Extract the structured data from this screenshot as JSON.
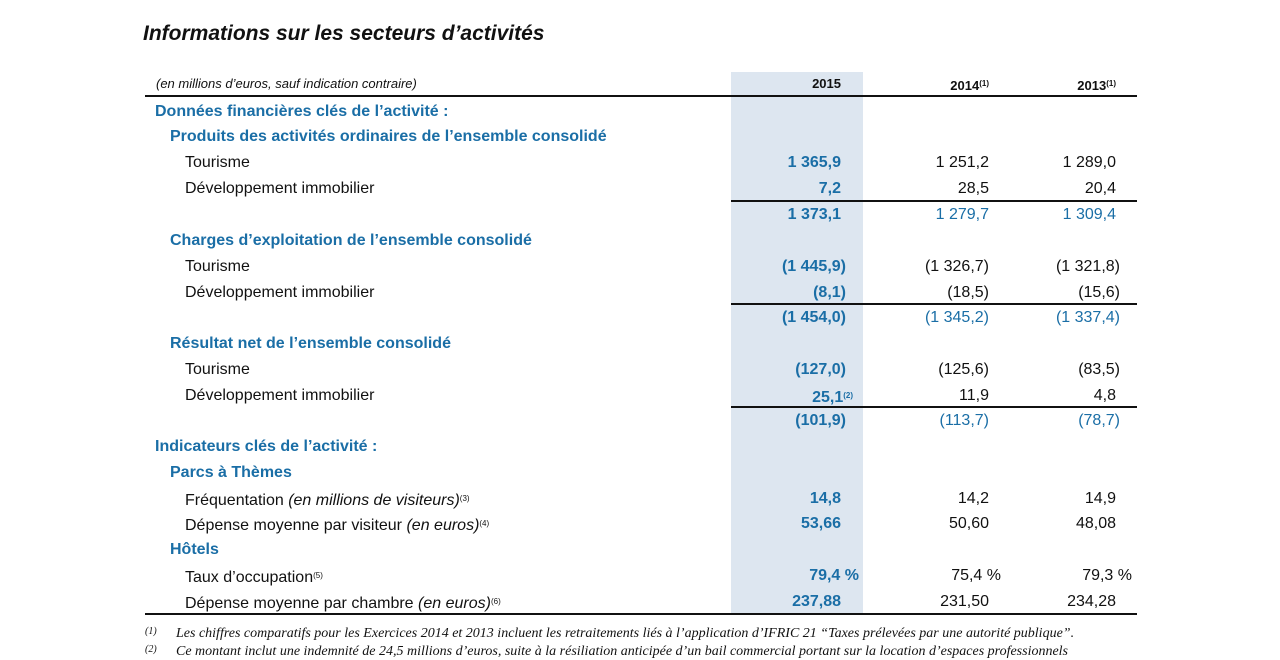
{
  "title": "Informations sur les secteurs d’activités",
  "header": {
    "unit_note": "(en millions d’euros, sauf indication contraire)",
    "y2015": "2015",
    "y2014": "2014",
    "y2013": "2013",
    "note_mark": "(1)"
  },
  "sections": {
    "donnees": "Données financières clés de l’activité :",
    "produits": "Produits des activités ordinaires de l’ensemble consolidé",
    "charges": "Charges d’exploitation de l’ensemble consolidé",
    "resultat": "Résultat net de l’ensemble consolidé",
    "indicateurs": "Indicateurs clés de l’activité :",
    "parcs": "Parcs à Thèmes",
    "hotels": "Hôtels"
  },
  "labels": {
    "tourisme": "Tourisme",
    "dev": "Développement immobilier"
  },
  "produits": {
    "tourisme": [
      "1 365,9",
      "1 251,2",
      "1 289,0"
    ],
    "dev": [
      "7,2",
      "28,5",
      "20,4"
    ],
    "total": [
      "1 373,1",
      "1 279,7",
      "1 309,4"
    ]
  },
  "charges": {
    "tourisme": [
      "(1 445,9)",
      "(1 326,7)",
      "(1 321,8)"
    ],
    "dev": [
      "(8,1)",
      "(18,5)",
      "(15,6)"
    ],
    "total": [
      "(1 454,0)",
      "(1 345,2)",
      "(1 337,4)"
    ]
  },
  "resultat": {
    "tourisme": [
      "(127,0)",
      "(125,6)",
      "(83,5)"
    ],
    "dev": [
      "25,1",
      "11,9",
      "4,8"
    ],
    "dev_note": "(2)",
    "total": [
      "(101,9)",
      "(113,7)",
      "(78,7)"
    ]
  },
  "parcs": {
    "freq_label": "Fréquentation",
    "freq_unit": "(en millions de visiteurs)",
    "freq_note": "(3)",
    "freq": [
      "14,8",
      "14,2",
      "14,9"
    ],
    "dep_label": "Dépense moyenne par visiteur",
    "dep_unit": "(en euros)",
    "dep_note": "(4)",
    "dep": [
      "53,66",
      "50,60",
      "48,08"
    ]
  },
  "hotels": {
    "taux_label": "Taux d’occupation",
    "taux_note": "(5)",
    "taux": [
      "79,4 %",
      "75,4 %",
      "79,3 %"
    ],
    "dep_label": "Dépense moyenne par chambre",
    "dep_unit": "(en euros)",
    "dep_note": "(6)",
    "dep": [
      "237,88",
      "231,50",
      "234,28"
    ]
  },
  "footnotes": {
    "n1_mark": "(1)",
    "n1_text": "Les chiffres comparatifs pour les Exercices 2014 et 2013 incluent les retraitements liés à l’application d’IFRIC 21 “Taxes prélevées par une autorité publique”.",
    "n2_mark": "(2)",
    "n2_text": "Ce montant inclut une indemnité de 24,5 millions d’euros, suite à la résiliation anticipée d’un bail commercial portant sur la location d’espaces professionnels"
  }
}
